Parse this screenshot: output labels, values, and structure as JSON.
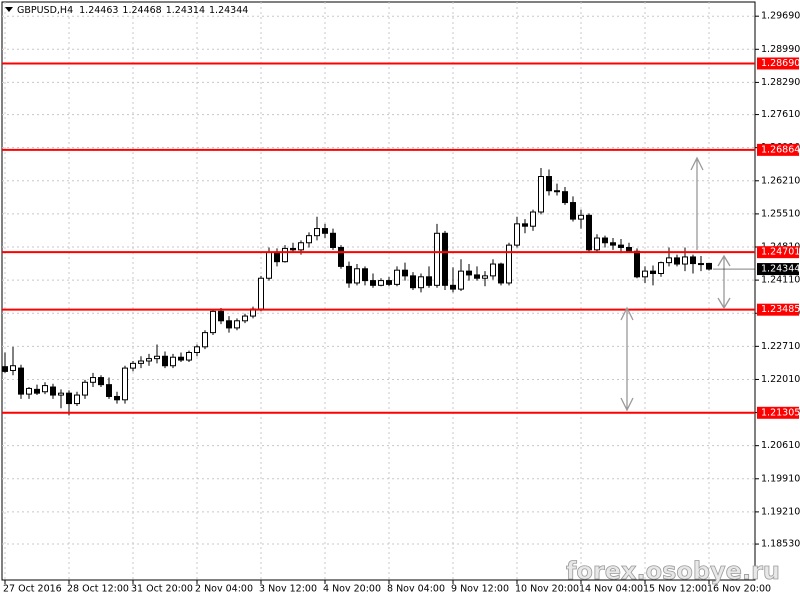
{
  "chart_data": {
    "type": "candlestick",
    "symbol": "GBPUSD,H4",
    "annotation": "forex.osobye.ru",
    "categories": [
      "27 Oct 2016",
      null,
      null,
      null,
      null,
      null,
      null,
      null,
      "28 Oct 12:00",
      null,
      null,
      null,
      null,
      null,
      null,
      null,
      "31 Oct 20:00",
      null,
      null,
      null,
      null,
      null,
      null,
      null,
      "2 Nov 04:00",
      null,
      null,
      null,
      null,
      null,
      null,
      null,
      "3 Nov 12:00",
      null,
      null,
      null,
      null,
      null,
      null,
      null,
      "4 Nov 20:00",
      null,
      null,
      null,
      null,
      null,
      null,
      null,
      "8 Nov 04:00",
      null,
      null,
      null,
      null,
      null,
      null,
      null,
      "9 Nov 12:00",
      null,
      null,
      null,
      null,
      null,
      null,
      null,
      "10 Nov 20:00",
      null,
      null,
      null,
      null,
      null,
      null,
      null,
      "14 Nov 04:00",
      null,
      null,
      null,
      null,
      null,
      null,
      null,
      "15 Nov 12:00",
      null,
      null,
      null,
      null,
      null,
      null,
      null,
      "16 Nov 20:00"
    ],
    "ohlc": [
      [
        1.2228,
        1.2258,
        1.2215,
        1.2218
      ],
      [
        1.222,
        1.227,
        1.221,
        1.223
      ],
      [
        1.2225,
        1.2232,
        1.216,
        1.217
      ],
      [
        1.217,
        1.2185,
        1.216,
        1.2182
      ],
      [
        1.218,
        1.219,
        1.2168,
        1.2172
      ],
      [
        1.2175,
        1.2195,
        1.217,
        1.2188
      ],
      [
        1.2185,
        1.2192,
        1.216,
        1.2168
      ],
      [
        1.2168,
        1.218,
        1.214,
        1.2172
      ],
      [
        1.2172,
        1.2178,
        1.2125,
        1.215
      ],
      [
        1.215,
        1.2175,
        1.2145,
        1.2168
      ],
      [
        1.2168,
        1.22,
        1.216,
        1.2195
      ],
      [
        1.2195,
        1.2215,
        1.2185,
        1.2205
      ],
      [
        1.2205,
        1.221,
        1.2185,
        1.219
      ],
      [
        1.219,
        1.2205,
        1.216,
        1.2165
      ],
      [
        1.2165,
        1.2175,
        1.215,
        1.2158
      ],
      [
        1.2158,
        1.223,
        1.215,
        1.2225
      ],
      [
        1.2225,
        1.224,
        1.2218,
        1.2235
      ],
      [
        1.2235,
        1.225,
        1.2225,
        1.224
      ],
      [
        1.224,
        1.2255,
        1.223,
        1.2245
      ],
      [
        1.2245,
        1.2275,
        1.2235,
        1.225
      ],
      [
        1.225,
        1.226,
        1.2225,
        1.223
      ],
      [
        1.223,
        1.2255,
        1.2225,
        1.2248
      ],
      [
        1.2248,
        1.2258,
        1.2238,
        1.2242
      ],
      [
        1.2242,
        1.2262,
        1.2238,
        1.2258
      ],
      [
        1.2258,
        1.2275,
        1.225,
        1.227
      ],
      [
        1.227,
        1.2305,
        1.2265,
        1.23
      ],
      [
        1.23,
        1.235,
        1.2295,
        1.2345
      ],
      [
        1.2345,
        1.2352,
        1.2318,
        1.2325
      ],
      [
        1.2325,
        1.2335,
        1.23,
        1.231
      ],
      [
        1.231,
        1.233,
        1.2305,
        1.2325
      ],
      [
        1.2325,
        1.234,
        1.232,
        1.2335
      ],
      [
        1.2335,
        1.2355,
        1.233,
        1.235
      ],
      [
        1.235,
        1.242,
        1.2345,
        1.2415
      ],
      [
        1.2415,
        1.248,
        1.241,
        1.247
      ],
      [
        1.247,
        1.2478,
        1.244,
        1.245
      ],
      [
        1.245,
        1.2485,
        1.2448,
        1.2478
      ],
      [
        1.2478,
        1.249,
        1.247,
        1.2475
      ],
      [
        1.2475,
        1.2495,
        1.2465,
        1.249
      ],
      [
        1.249,
        1.2512,
        1.248,
        1.2505
      ],
      [
        1.2505,
        1.2545,
        1.2495,
        1.252
      ],
      [
        1.252,
        1.253,
        1.25,
        1.251
      ],
      [
        1.251,
        1.252,
        1.2475,
        1.248
      ],
      [
        1.248,
        1.2485,
        1.2435,
        1.244
      ],
      [
        1.244,
        1.245,
        1.2395,
        1.2405
      ],
      [
        1.2405,
        1.2445,
        1.24,
        1.2435
      ],
      [
        1.2435,
        1.244,
        1.24,
        1.241
      ],
      [
        1.241,
        1.2425,
        1.2395,
        1.24
      ],
      [
        1.24,
        1.2415,
        1.2398,
        1.241
      ],
      [
        1.241,
        1.2418,
        1.2398,
        1.2402
      ],
      [
        1.2402,
        1.244,
        1.2398,
        1.2432
      ],
      [
        1.2432,
        1.2448,
        1.241,
        1.242
      ],
      [
        1.242,
        1.2428,
        1.239,
        1.2395
      ],
      [
        1.2395,
        1.2425,
        1.2385,
        1.2418
      ],
      [
        1.2418,
        1.244,
        1.2395,
        1.24
      ],
      [
        1.24,
        1.253,
        1.2395,
        1.251
      ],
      [
        1.251,
        1.2515,
        1.239,
        1.24
      ],
      [
        1.24,
        1.2438,
        1.2385,
        1.2392
      ],
      [
        1.2392,
        1.2455,
        1.2388,
        1.243
      ],
      [
        1.243,
        1.2445,
        1.241,
        1.2422
      ],
      [
        1.2422,
        1.244,
        1.241,
        1.2415
      ],
      [
        1.2415,
        1.243,
        1.2398,
        1.242
      ],
      [
        1.242,
        1.2455,
        1.2412,
        1.2445
      ],
      [
        1.2445,
        1.2448,
        1.24,
        1.2405
      ],
      [
        1.2405,
        1.249,
        1.24,
        1.2485
      ],
      [
        1.2485,
        1.2545,
        1.248,
        1.253
      ],
      [
        1.253,
        1.254,
        1.251,
        1.2525
      ],
      [
        1.2525,
        1.256,
        1.2515,
        1.2555
      ],
      [
        1.2555,
        1.2648,
        1.255,
        1.263
      ],
      [
        1.263,
        1.2645,
        1.259,
        1.26
      ],
      [
        1.26,
        1.2615,
        1.259,
        1.2598
      ],
      [
        1.2598,
        1.2608,
        1.257,
        1.2575
      ],
      [
        1.2575,
        1.2588,
        1.2535,
        1.254
      ],
      [
        1.254,
        1.256,
        1.252,
        1.2548
      ],
      [
        1.2548,
        1.2552,
        1.247,
        1.2475
      ],
      [
        1.2475,
        1.2508,
        1.247,
        1.25
      ],
      [
        1.25,
        1.2505,
        1.248,
        1.249
      ],
      [
        1.249,
        1.25,
        1.2475,
        1.2485
      ],
      [
        1.2485,
        1.2498,
        1.2468,
        1.248
      ],
      [
        1.248,
        1.249,
        1.247,
        1.2472
      ],
      [
        1.2472,
        1.2478,
        1.2415,
        1.2418
      ],
      [
        1.2418,
        1.244,
        1.2405,
        1.243
      ],
      [
        1.243,
        1.2442,
        1.24,
        1.2425
      ],
      [
        1.2425,
        1.245,
        1.2418,
        1.2448
      ],
      [
        1.2448,
        1.248,
        1.244,
        1.2458
      ],
      [
        1.2458,
        1.2465,
        1.244,
        1.2445
      ],
      [
        1.2445,
        1.248,
        1.243,
        1.246
      ],
      [
        1.246,
        1.2465,
        1.2425,
        1.2446
      ],
      [
        1.2446,
        1.2462,
        1.243,
        1.2446
      ],
      [
        1.24463,
        1.24468,
        1.24314,
        1.24344
      ]
    ],
    "up_color": "#ffffff",
    "down_color": "#000000",
    "outline_color": "#000000",
    "ylim": [
      1.1777,
      1.2999
    ],
    "yticks": [
      {
        "value": 1.2969,
        "label": "1.29690"
      },
      {
        "value": 1.2899,
        "label": "1.28990"
      },
      {
        "value": 1.2829,
        "label": "1.28290"
      },
      {
        "value": 1.2761,
        "label": "1.27610"
      },
      {
        "value": 1.2691,
        "label": "1.26910"
      },
      {
        "value": 1.2621,
        "label": "1.26210"
      },
      {
        "value": 1.2551,
        "label": "1.25510"
      },
      {
        "value": 1.2481,
        "label": "1.24810"
      },
      {
        "value": 1.2411,
        "label": "1.24110"
      },
      {
        "value": 1.2341,
        "label": "1.23410"
      },
      {
        "value": 1.2271,
        "label": "1.22710"
      },
      {
        "value": 1.2201,
        "label": "1.22010"
      },
      {
        "value": 1.2131,
        "label": "1.21310"
      },
      {
        "value": 1.2061,
        "label": "1.20610"
      },
      {
        "value": 1.1991,
        "label": "1.19910"
      },
      {
        "value": 1.1921,
        "label": "1.19210"
      },
      {
        "value": 1.1853,
        "label": "1.18530"
      }
    ],
    "grid": true,
    "levels": [
      {
        "value": 1.2869,
        "label": "1.28690"
      },
      {
        "value": 1.26864,
        "label": "1.26864"
      },
      {
        "value": 1.24701,
        "label": "1.24701"
      },
      {
        "value": 1.23485,
        "label": "1.23485"
      },
      {
        "value": 1.21305,
        "label": "1.21305"
      }
    ],
    "level_color": "#ff0000"
  }
}
